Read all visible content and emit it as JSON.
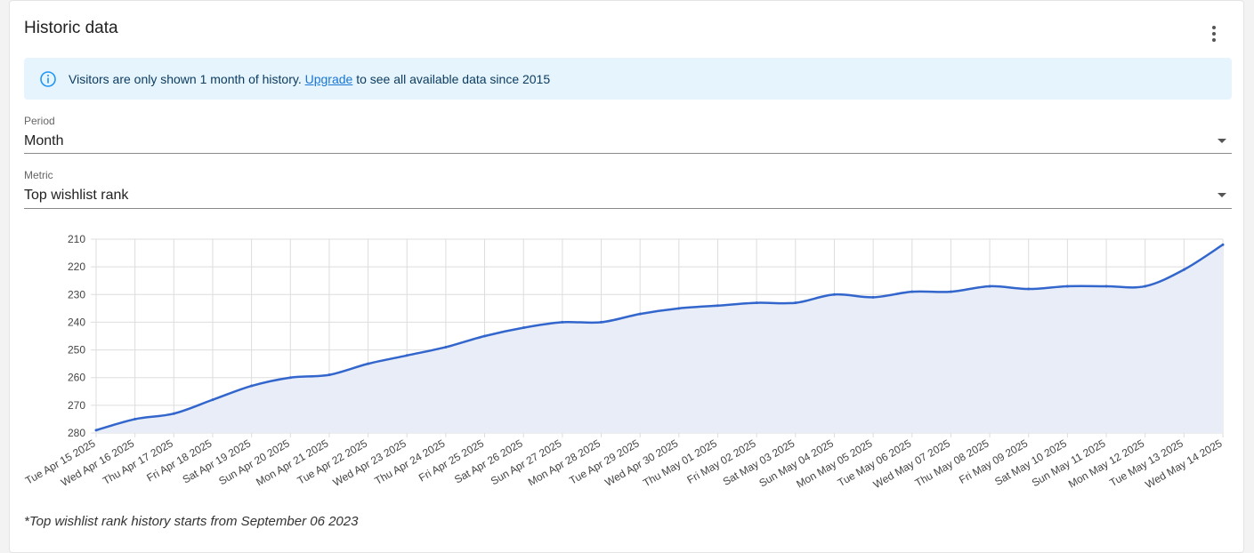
{
  "card": {
    "title": "Historic data",
    "menu_icon": "more-vertical-icon"
  },
  "alert": {
    "icon": "info-icon",
    "text_before": "Visitors are only shown 1 month of history.",
    "link_label": "Upgrade",
    "text_after": "to see all available data since 2015"
  },
  "period": {
    "label": "Period",
    "value": "Month"
  },
  "metric": {
    "label": "Metric",
    "value": "Top wishlist rank"
  },
  "chart_data": {
    "type": "area",
    "title": "",
    "xlabel": "",
    "ylabel": "",
    "ylim": [
      210,
      280
    ],
    "y_reversed": true,
    "yticks": [
      210,
      220,
      230,
      240,
      250,
      260,
      270,
      280
    ],
    "grid": true,
    "line_color": "#3366cc",
    "fill_color": "#e8edf8",
    "categories": [
      "Tue Apr 15 2025",
      "Wed Apr 16 2025",
      "Thu Apr 17 2025",
      "Fri Apr 18 2025",
      "Sat Apr 19 2025",
      "Sun Apr 20 2025",
      "Mon Apr 21 2025",
      "Tue Apr 22 2025",
      "Wed Apr 23 2025",
      "Thu Apr 24 2025",
      "Fri Apr 25 2025",
      "Sat Apr 26 2025",
      "Sun Apr 27 2025",
      "Mon Apr 28 2025",
      "Tue Apr 29 2025",
      "Wed Apr 30 2025",
      "Thu May 01 2025",
      "Fri May 02 2025",
      "Sat May 03 2025",
      "Sun May 04 2025",
      "Mon May 05 2025",
      "Tue May 06 2025",
      "Wed May 07 2025",
      "Thu May 08 2025",
      "Fri May 09 2025",
      "Sat May 10 2025",
      "Sun May 11 2025",
      "Mon May 12 2025",
      "Tue May 13 2025",
      "Wed May 14 2025"
    ],
    "values": [
      279,
      275,
      273,
      268,
      263,
      260,
      259,
      255,
      252,
      249,
      245,
      242,
      240,
      240,
      237,
      235,
      234,
      233,
      233,
      230,
      231,
      229,
      229,
      227,
      228,
      227,
      227,
      227,
      221,
      212
    ]
  },
  "footnote": "*Top wishlist rank history starts from September 06 2023"
}
